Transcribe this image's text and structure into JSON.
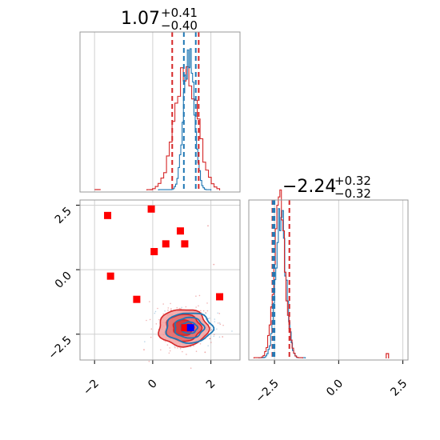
{
  "chart_data": [
    {
      "panel": "hist-param1",
      "type": "histogram",
      "title": {
        "value": "1.07",
        "plus": "+0.41",
        "minus": "−0.40"
      },
      "xlim": [
        -2.5,
        3.0
      ],
      "grid": true,
      "colors": {
        "blue": "#1f77b4",
        "red": "#d62728"
      },
      "blue_quantile_lines": [
        1.07,
        1.48
      ],
      "red_quantile_lines": [
        0.67,
        1.58
      ],
      "blue_hist": {
        "center": 1.25,
        "sigma": 0.18,
        "peak": 0.92,
        "range": [
          0.2,
          2.0
        ]
      },
      "red_hist": {
        "center": 1.15,
        "sigma": 0.38,
        "peak": 0.8,
        "range": [
          -0.2,
          2.3
        ]
      },
      "red_tail_bins": [
        [
          -2.0,
          0.01
        ],
        [
          -1.9,
          0.01
        ],
        [
          -0.1,
          0.02
        ]
      ]
    },
    {
      "panel": "hist-param2",
      "type": "histogram",
      "title": {
        "value": "−2.24",
        "plus": "+0.32",
        "minus": "−0.32"
      },
      "xlim": [
        -3.5,
        2.7
      ],
      "xticks": [
        "−2.5",
        "0.0",
        "2.5"
      ],
      "xtick_values": [
        -2.5,
        0.0,
        2.5
      ],
      "grid": true,
      "blue_quantile_lines": [
        -2.56,
        -2.5
      ],
      "red_quantile_lines": [
        -2.58,
        -1.92
      ],
      "blue_hist": {
        "center": -2.25,
        "sigma": 0.2,
        "peak": 0.93,
        "range": [
          -3.1,
          -1.3
        ]
      },
      "red_hist": {
        "center": -2.3,
        "sigma": 0.22,
        "peak": 0.98,
        "range": [
          -3.3,
          -1.4
        ]
      },
      "red_tail_bins": [
        [
          1.85,
          0.04
        ]
      ]
    },
    {
      "panel": "corner-2d",
      "type": "scatter",
      "xlim": [
        -2.5,
        3.0
      ],
      "ylim": [
        -3.5,
        2.7
      ],
      "xticks": [
        "−2",
        "0",
        "2"
      ],
      "xtick_values": [
        -2,
        0,
        2
      ],
      "yticks": [
        "2.5",
        "0.0",
        "−2.5"
      ],
      "ytick_values": [
        2.5,
        0.0,
        -2.5
      ],
      "grid": true,
      "red_squares": [
        [
          -1.55,
          2.1
        ],
        [
          -0.05,
          2.35
        ],
        [
          0.95,
          1.5
        ],
        [
          0.45,
          1.0
        ],
        [
          1.1,
          1.0
        ],
        [
          0.05,
          0.7
        ],
        [
          -1.45,
          -0.25
        ],
        [
          -0.55,
          -1.15
        ],
        [
          2.3,
          -1.05
        ],
        [
          1.1,
          -2.25
        ]
      ],
      "blue_square": [
        1.3,
        -2.25
      ],
      "red_contour": {
        "center": [
          1.05,
          -2.25
        ],
        "radii": [
          [
            0.85,
            0.72
          ],
          [
            0.6,
            0.52
          ],
          [
            0.35,
            0.3
          ]
        ]
      },
      "blue_contour": {
        "center": [
          1.25,
          -2.25
        ],
        "radii": [
          [
            0.8,
            0.58
          ],
          [
            0.5,
            0.4
          ],
          [
            0.28,
            0.22
          ]
        ]
      }
    }
  ]
}
